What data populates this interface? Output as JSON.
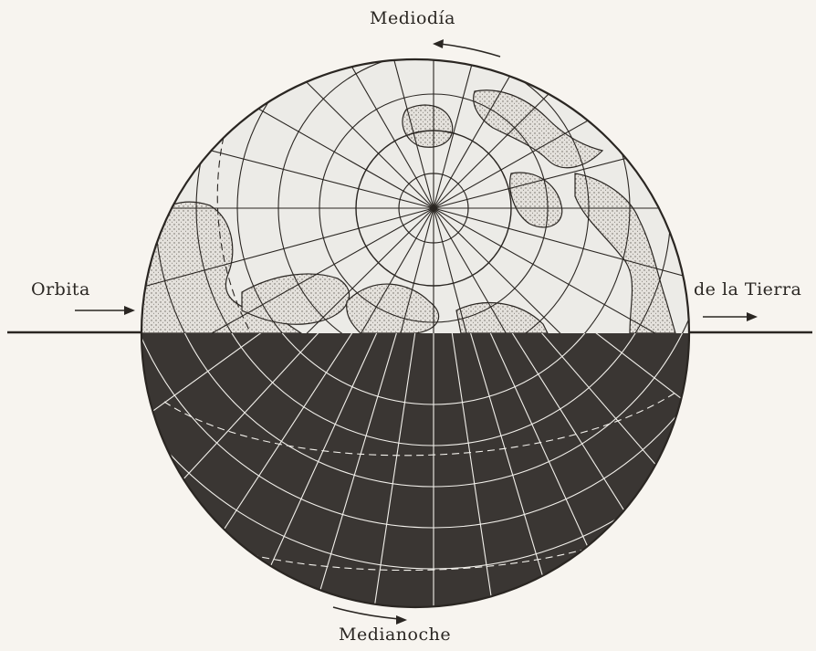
{
  "labels": {
    "top": "Mediodía",
    "bottom": "Medianoche",
    "orbit_left": "Orbita",
    "orbit_right": "de la Tierra"
  },
  "colors": {
    "paper": "#f7f4ef",
    "ink": "#2a2622",
    "night": "#3a3633",
    "day": "#ecebe7",
    "land": "#c8c4bd"
  },
  "icons": {
    "arrow_top": "arrow-left-icon",
    "arrow_bottom": "arrow-right-icon",
    "arrow_orbit_left": "arrow-right-icon",
    "arrow_orbit_right": "arrow-right-icon"
  }
}
